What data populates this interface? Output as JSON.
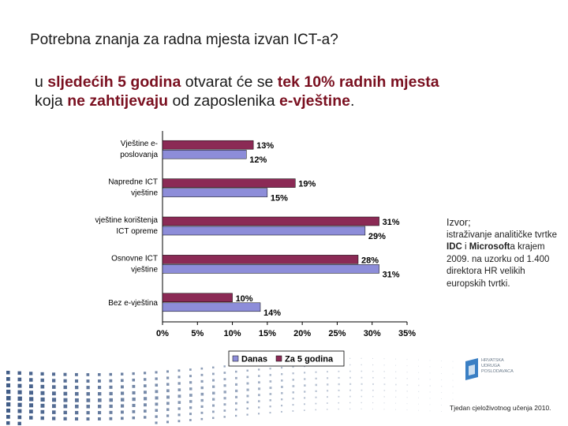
{
  "header": {
    "title": "Potrebna znanja za radna mjesta izvan ICT-a?",
    "subtitle": {
      "line1": [
        {
          "t": "u ",
          "hl": false
        },
        {
          "t": "sljedećih 5 godina",
          "hl": true
        },
        {
          "t": " otvarat će se ",
          "hl": false
        },
        {
          "t": "tek 10% radnih mjesta",
          "hl": true
        }
      ],
      "line2": [
        {
          "t": "koja ",
          "hl": false
        },
        {
          "t": "ne zahtijevaju",
          "hl": true
        },
        {
          "t": " od zaposlenika ",
          "hl": false
        },
        {
          "t": "e-vještine",
          "hl": true
        },
        {
          "t": ".",
          "hl": false
        }
      ]
    }
  },
  "chart_data": {
    "type": "bar",
    "orientation": "horizontal",
    "categories": [
      [
        "Vještine e-",
        "poslovanja"
      ],
      [
        "Napredne ICT",
        "vještine"
      ],
      [
        "vještine korištenja",
        "ICT opreme"
      ],
      [
        "Osnovne ICT",
        "vještine"
      ],
      [
        "Bez e-vještina"
      ]
    ],
    "series": [
      {
        "name": "Danas",
        "color": "#8d8dd9",
        "values": [
          12,
          15,
          29,
          31,
          14
        ],
        "labels": [
          "12%",
          "15%",
          "29%",
          "31%",
          "14%"
        ]
      },
      {
        "name": "Za 5 godina",
        "color": "#8b2a55",
        "values": [
          13,
          19,
          31,
          28,
          10
        ],
        "labels": [
          "13%",
          "19%",
          "31%",
          "28%",
          "10%"
        ]
      }
    ],
    "xlim": [
      0,
      35
    ],
    "xticks": [
      "0%",
      "5%",
      "10%",
      "15%",
      "20%",
      "25%",
      "30%",
      "35%"
    ],
    "legend_position": "bottom",
    "grid": false
  },
  "source": {
    "label": "Izvor;",
    "text_before": "istraživanje analitičke tvrtke ",
    "company1": "IDC",
    "and": " i ",
    "company2": "Microsoft",
    "text_after": "a krajem 2009. na uzorku od 1.400 direktora HR velikih europskih tvrtki."
  },
  "logo": {
    "lines": [
      "HRVATSKA",
      "UDRUGA",
      "POSLODAVACA"
    ]
  },
  "footer": "Tjedan cjeloživotnog učenja 2010."
}
